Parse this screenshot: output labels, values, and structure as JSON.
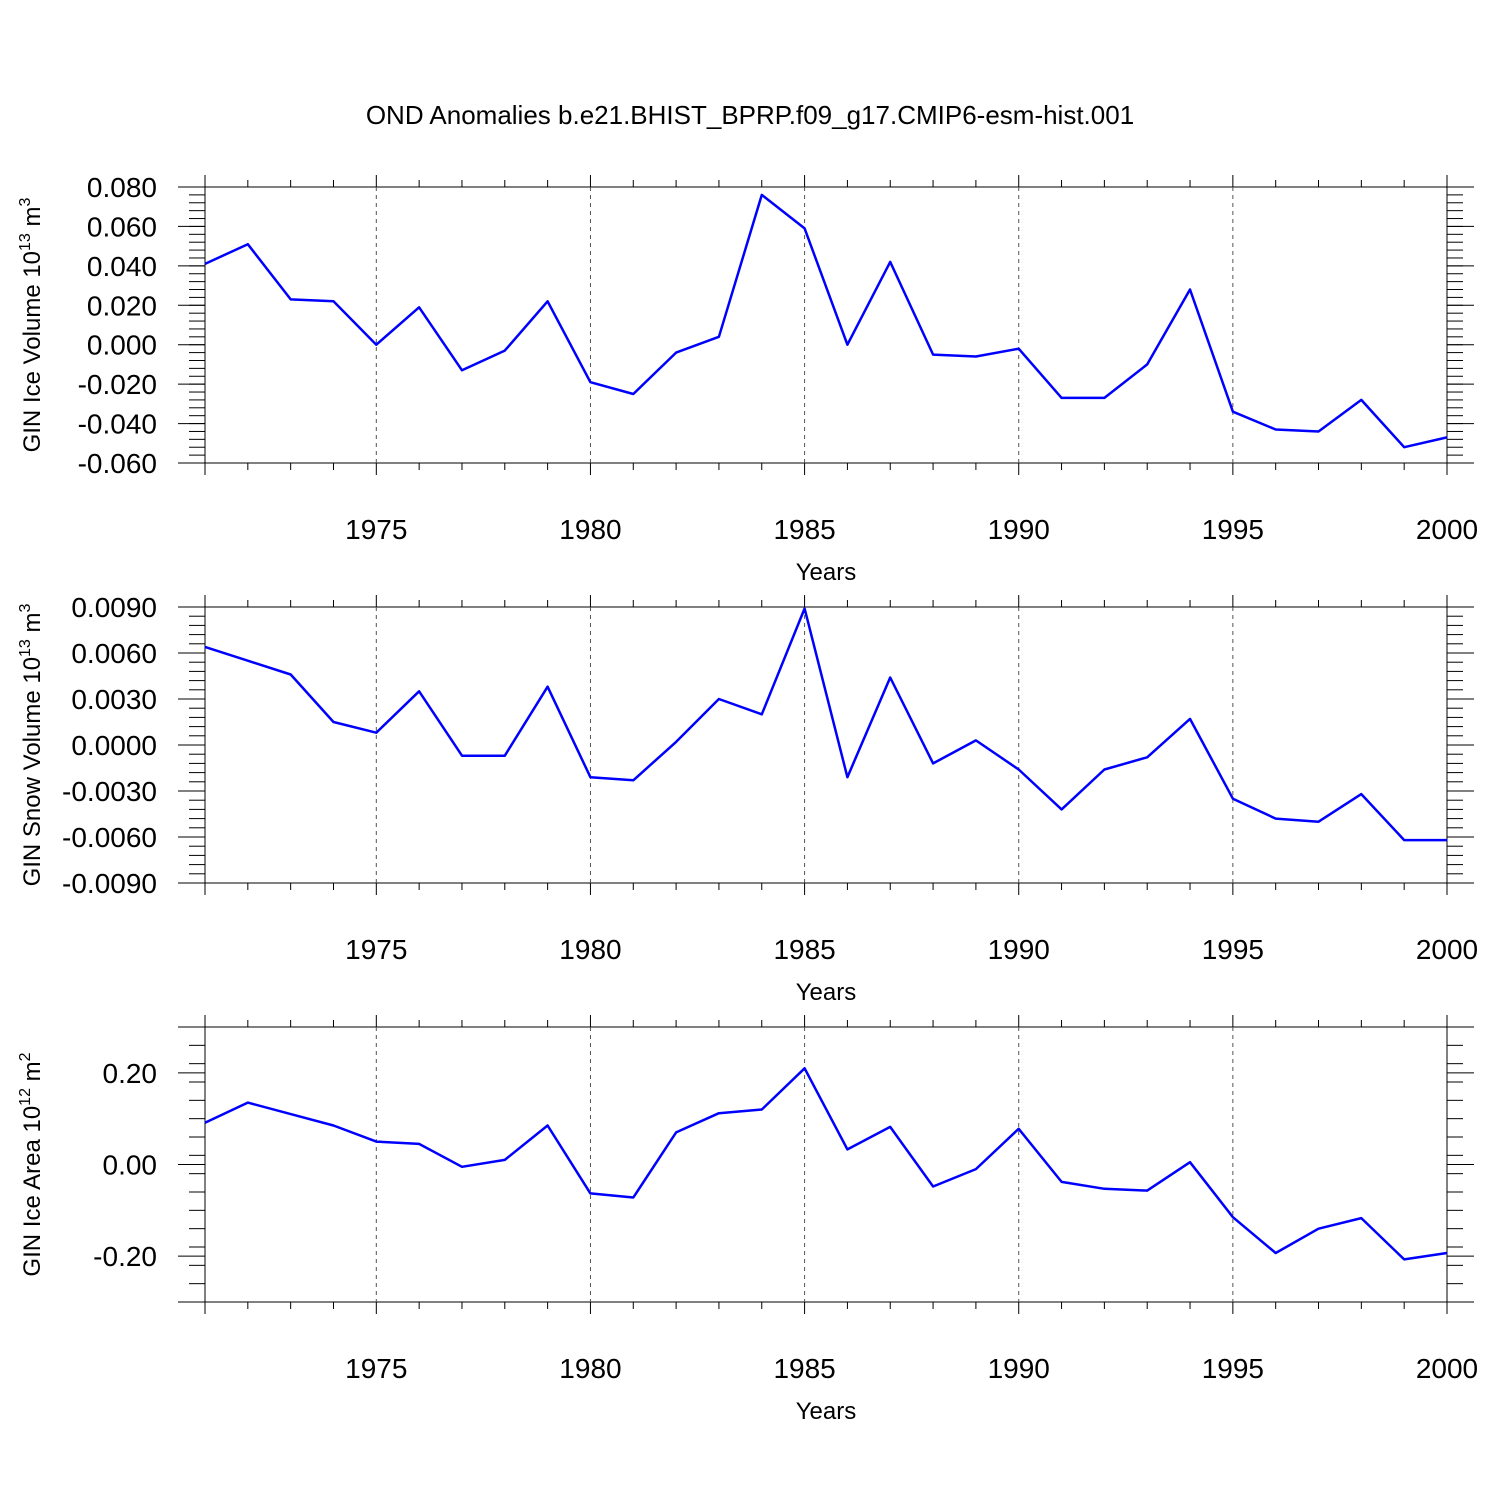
{
  "title": "OND Anomalies b.e21.BHIST_BPRP.f09_g17.CMIP6-esm-hist.001",
  "colors": {
    "line": "#0000ff",
    "axis": "#000000",
    "grid": "#555555"
  },
  "chart_data": [
    {
      "type": "line",
      "ylabel": "GIN Ice Volume 10",
      "ylabel_sup": "13",
      "ylabel_unit": " m",
      "ylabel_unit_sup": "3",
      "xlabel": "Years",
      "xlim": [
        1971,
        2000
      ],
      "ylim": [
        -0.06,
        0.08
      ],
      "xticks": [
        "1975",
        "1980",
        "1985",
        "1990",
        "1995",
        "2000"
      ],
      "yticks": [
        "0.080",
        "0.060",
        "0.040",
        "0.020",
        "0.000",
        "-0.020",
        "-0.040",
        "-0.060"
      ],
      "x": [
        1971,
        1972,
        1973,
        1974,
        1975,
        1976,
        1977,
        1978,
        1979,
        1980,
        1981,
        1982,
        1983,
        1984,
        1985,
        1986,
        1987,
        1988,
        1989,
        1990,
        1991,
        1992,
        1993,
        1994,
        1995,
        1996,
        1997,
        1998,
        1999,
        2000
      ],
      "values": [
        0.041,
        0.051,
        0.023,
        0.022,
        0.0,
        0.019,
        -0.013,
        -0.003,
        0.022,
        -0.019,
        -0.025,
        -0.004,
        0.004,
        0.076,
        0.059,
        0.0,
        0.042,
        -0.005,
        -0.006,
        -0.002,
        -0.027,
        -0.027,
        -0.01,
        0.028,
        -0.034,
        -0.043,
        -0.044,
        -0.028,
        -0.052,
        -0.047
      ]
    },
    {
      "type": "line",
      "ylabel": "GIN Snow Volume 10",
      "ylabel_sup": "13",
      "ylabel_unit": " m",
      "ylabel_unit_sup": "3",
      "xlabel": "Years",
      "xlim": [
        1971,
        2000
      ],
      "ylim": [
        -0.009,
        0.009
      ],
      "xticks": [
        "1975",
        "1980",
        "1985",
        "1990",
        "1995",
        "2000"
      ],
      "yticks": [
        "0.0090",
        "0.0060",
        "0.0030",
        "0.0000",
        "-0.0030",
        "-0.0060",
        "-0.0090"
      ],
      "x": [
        1971,
        1972,
        1973,
        1974,
        1975,
        1976,
        1977,
        1978,
        1979,
        1980,
        1981,
        1982,
        1983,
        1984,
        1985,
        1986,
        1987,
        1988,
        1989,
        1990,
        1991,
        1992,
        1993,
        1994,
        1995,
        1996,
        1997,
        1998,
        1999,
        2000
      ],
      "values": [
        0.0064,
        0.0055,
        0.0046,
        0.0015,
        0.0008,
        0.0035,
        -0.0007,
        -0.0007,
        0.0038,
        -0.0021,
        -0.0023,
        0.0002,
        0.003,
        0.002,
        0.0089,
        -0.0021,
        0.0044,
        -0.0012,
        0.0003,
        -0.0016,
        -0.0042,
        -0.0016,
        -0.0008,
        0.0017,
        -0.0035,
        -0.0048,
        -0.005,
        -0.0032,
        -0.0062,
        -0.0062
      ]
    },
    {
      "type": "line",
      "ylabel": "GIN Ice Area 10",
      "ylabel_sup": "12",
      "ylabel_unit": " m",
      "ylabel_unit_sup": "2",
      "xlabel": "Years",
      "xlim": [
        1971,
        2000
      ],
      "ylim": [
        -0.3,
        0.3
      ],
      "xticks": [
        "1975",
        "1980",
        "1985",
        "1990",
        "1995",
        "2000"
      ],
      "yticks": [
        "0.20",
        "0.00",
        "-0.20"
      ],
      "x": [
        1971,
        1972,
        1973,
        1974,
        1975,
        1976,
        1977,
        1978,
        1979,
        1980,
        1981,
        1982,
        1983,
        1984,
        1985,
        1986,
        1987,
        1988,
        1989,
        1990,
        1991,
        1992,
        1993,
        1994,
        1995,
        1996,
        1997,
        1998,
        1999,
        2000
      ],
      "values": [
        0.091,
        0.135,
        0.11,
        0.085,
        0.05,
        0.045,
        -0.005,
        0.01,
        0.085,
        -0.063,
        -0.072,
        0.07,
        0.112,
        0.12,
        0.21,
        0.033,
        0.082,
        -0.048,
        -0.01,
        0.078,
        -0.038,
        -0.053,
        -0.057,
        0.005,
        -0.115,
        -0.193,
        -0.14,
        -0.117,
        -0.207,
        -0.193
      ]
    }
  ]
}
